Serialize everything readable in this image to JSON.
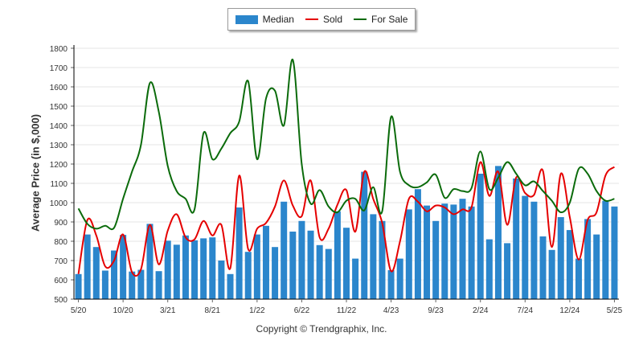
{
  "legend": {
    "median_label": "Median",
    "sold_label": "Sold",
    "forsale_label": "For Sale"
  },
  "copyright": "Copyright © Trendgraphix, Inc.",
  "colors": {
    "median": "#2b86cc",
    "sold": "#e50000",
    "forsale": "#0b6b0b",
    "axis": "#000000",
    "grid": "#e6e6e6"
  },
  "chart_data": {
    "type": "bar",
    "ylabel": "Average Price (in $,000)",
    "ylim": [
      500,
      1800
    ],
    "yticks": [
      500,
      600,
      700,
      800,
      900,
      1000,
      1100,
      1200,
      1300,
      1400,
      1500,
      1600,
      1700,
      1800
    ],
    "grid": true,
    "legend_position": "top-center",
    "categories": [
      "5/20",
      "6/20",
      "7/20",
      "8/20",
      "9/20",
      "10/20",
      "11/20",
      "12/20",
      "1/21",
      "2/21",
      "3/21",
      "4/21",
      "5/21",
      "6/21",
      "7/21",
      "8/21",
      "9/21",
      "10/21",
      "11/21",
      "12/21",
      "1/22",
      "2/22",
      "3/22",
      "4/22",
      "5/22",
      "6/22",
      "7/22",
      "8/22",
      "9/22",
      "10/22",
      "11/22",
      "12/22",
      "1/23",
      "2/23",
      "3/23",
      "4/23",
      "5/23",
      "6/23",
      "7/23",
      "8/23",
      "9/23",
      "10/23",
      "11/23",
      "12/23",
      "1/24",
      "2/24",
      "3/24",
      "4/24",
      "5/24",
      "6/24",
      "7/24",
      "8/24",
      "9/24",
      "10/24",
      "11/24",
      "12/24",
      "1/25",
      "2/25",
      "3/25",
      "4/25",
      "5/25"
    ],
    "x_tick_labels": [
      "5/20",
      "10/20",
      "3/21",
      "8/21",
      "1/22",
      "6/22",
      "11/22",
      "4/23",
      "9/23",
      "2/24",
      "7/24",
      "12/24",
      "5/25"
    ],
    "series": [
      {
        "name": "Median",
        "style": "bar",
        "values": [
          630,
          835,
          770,
          648,
          752,
          833,
          643,
          652,
          890,
          645,
          803,
          782,
          830,
          805,
          815,
          820,
          700,
          630,
          975,
          745,
          835,
          880,
          770,
          1005,
          850,
          905,
          855,
          780,
          760,
          955,
          870,
          710,
          1160,
          940,
          905,
          650,
          710,
          965,
          1070,
          985,
          905,
          995,
          990,
          1020,
          980,
          1150,
          810,
          1190,
          790,
          1125,
          1035,
          1005,
          825,
          755,
          925,
          858,
          710,
          915,
          835,
          1010,
          980
        ]
      },
      {
        "name": "Sold",
        "style": "line",
        "values": [
          630,
          910,
          830,
          670,
          700,
          835,
          640,
          655,
          885,
          680,
          855,
          940,
          820,
          810,
          905,
          830,
          885,
          660,
          1140,
          760,
          865,
          895,
          980,
          1115,
          985,
          930,
          1115,
          820,
          865,
          990,
          1065,
          850,
          1160,
          1020,
          895,
          645,
          800,
          1020,
          1005,
          955,
          985,
          975,
          940,
          965,
          975,
          1210,
          1035,
          1160,
          885,
          1130,
          1050,
          1040,
          1165,
          770,
          1150,
          925,
          705,
          910,
          950,
          1140,
          1185
        ]
      },
      {
        "name": "For Sale",
        "style": "line",
        "values": [
          970,
          890,
          865,
          880,
          870,
          1020,
          1160,
          1300,
          1620,
          1470,
          1190,
          1060,
          1020,
          965,
          1360,
          1225,
          1280,
          1360,
          1420,
          1630,
          1225,
          1540,
          1580,
          1400,
          1740,
          1200,
          995,
          1065,
          980,
          950,
          1010,
          1020,
          960,
          1080,
          955,
          1445,
          1160,
          1090,
          1080,
          1105,
          1145,
          1025,
          1070,
          1060,
          1075,
          1265,
          1070,
          1130,
          1210,
          1150,
          1090,
          1110,
          1060,
          1010,
          950,
          1000,
          1175,
          1150,
          1060,
          1010,
          1020
        ]
      }
    ]
  }
}
